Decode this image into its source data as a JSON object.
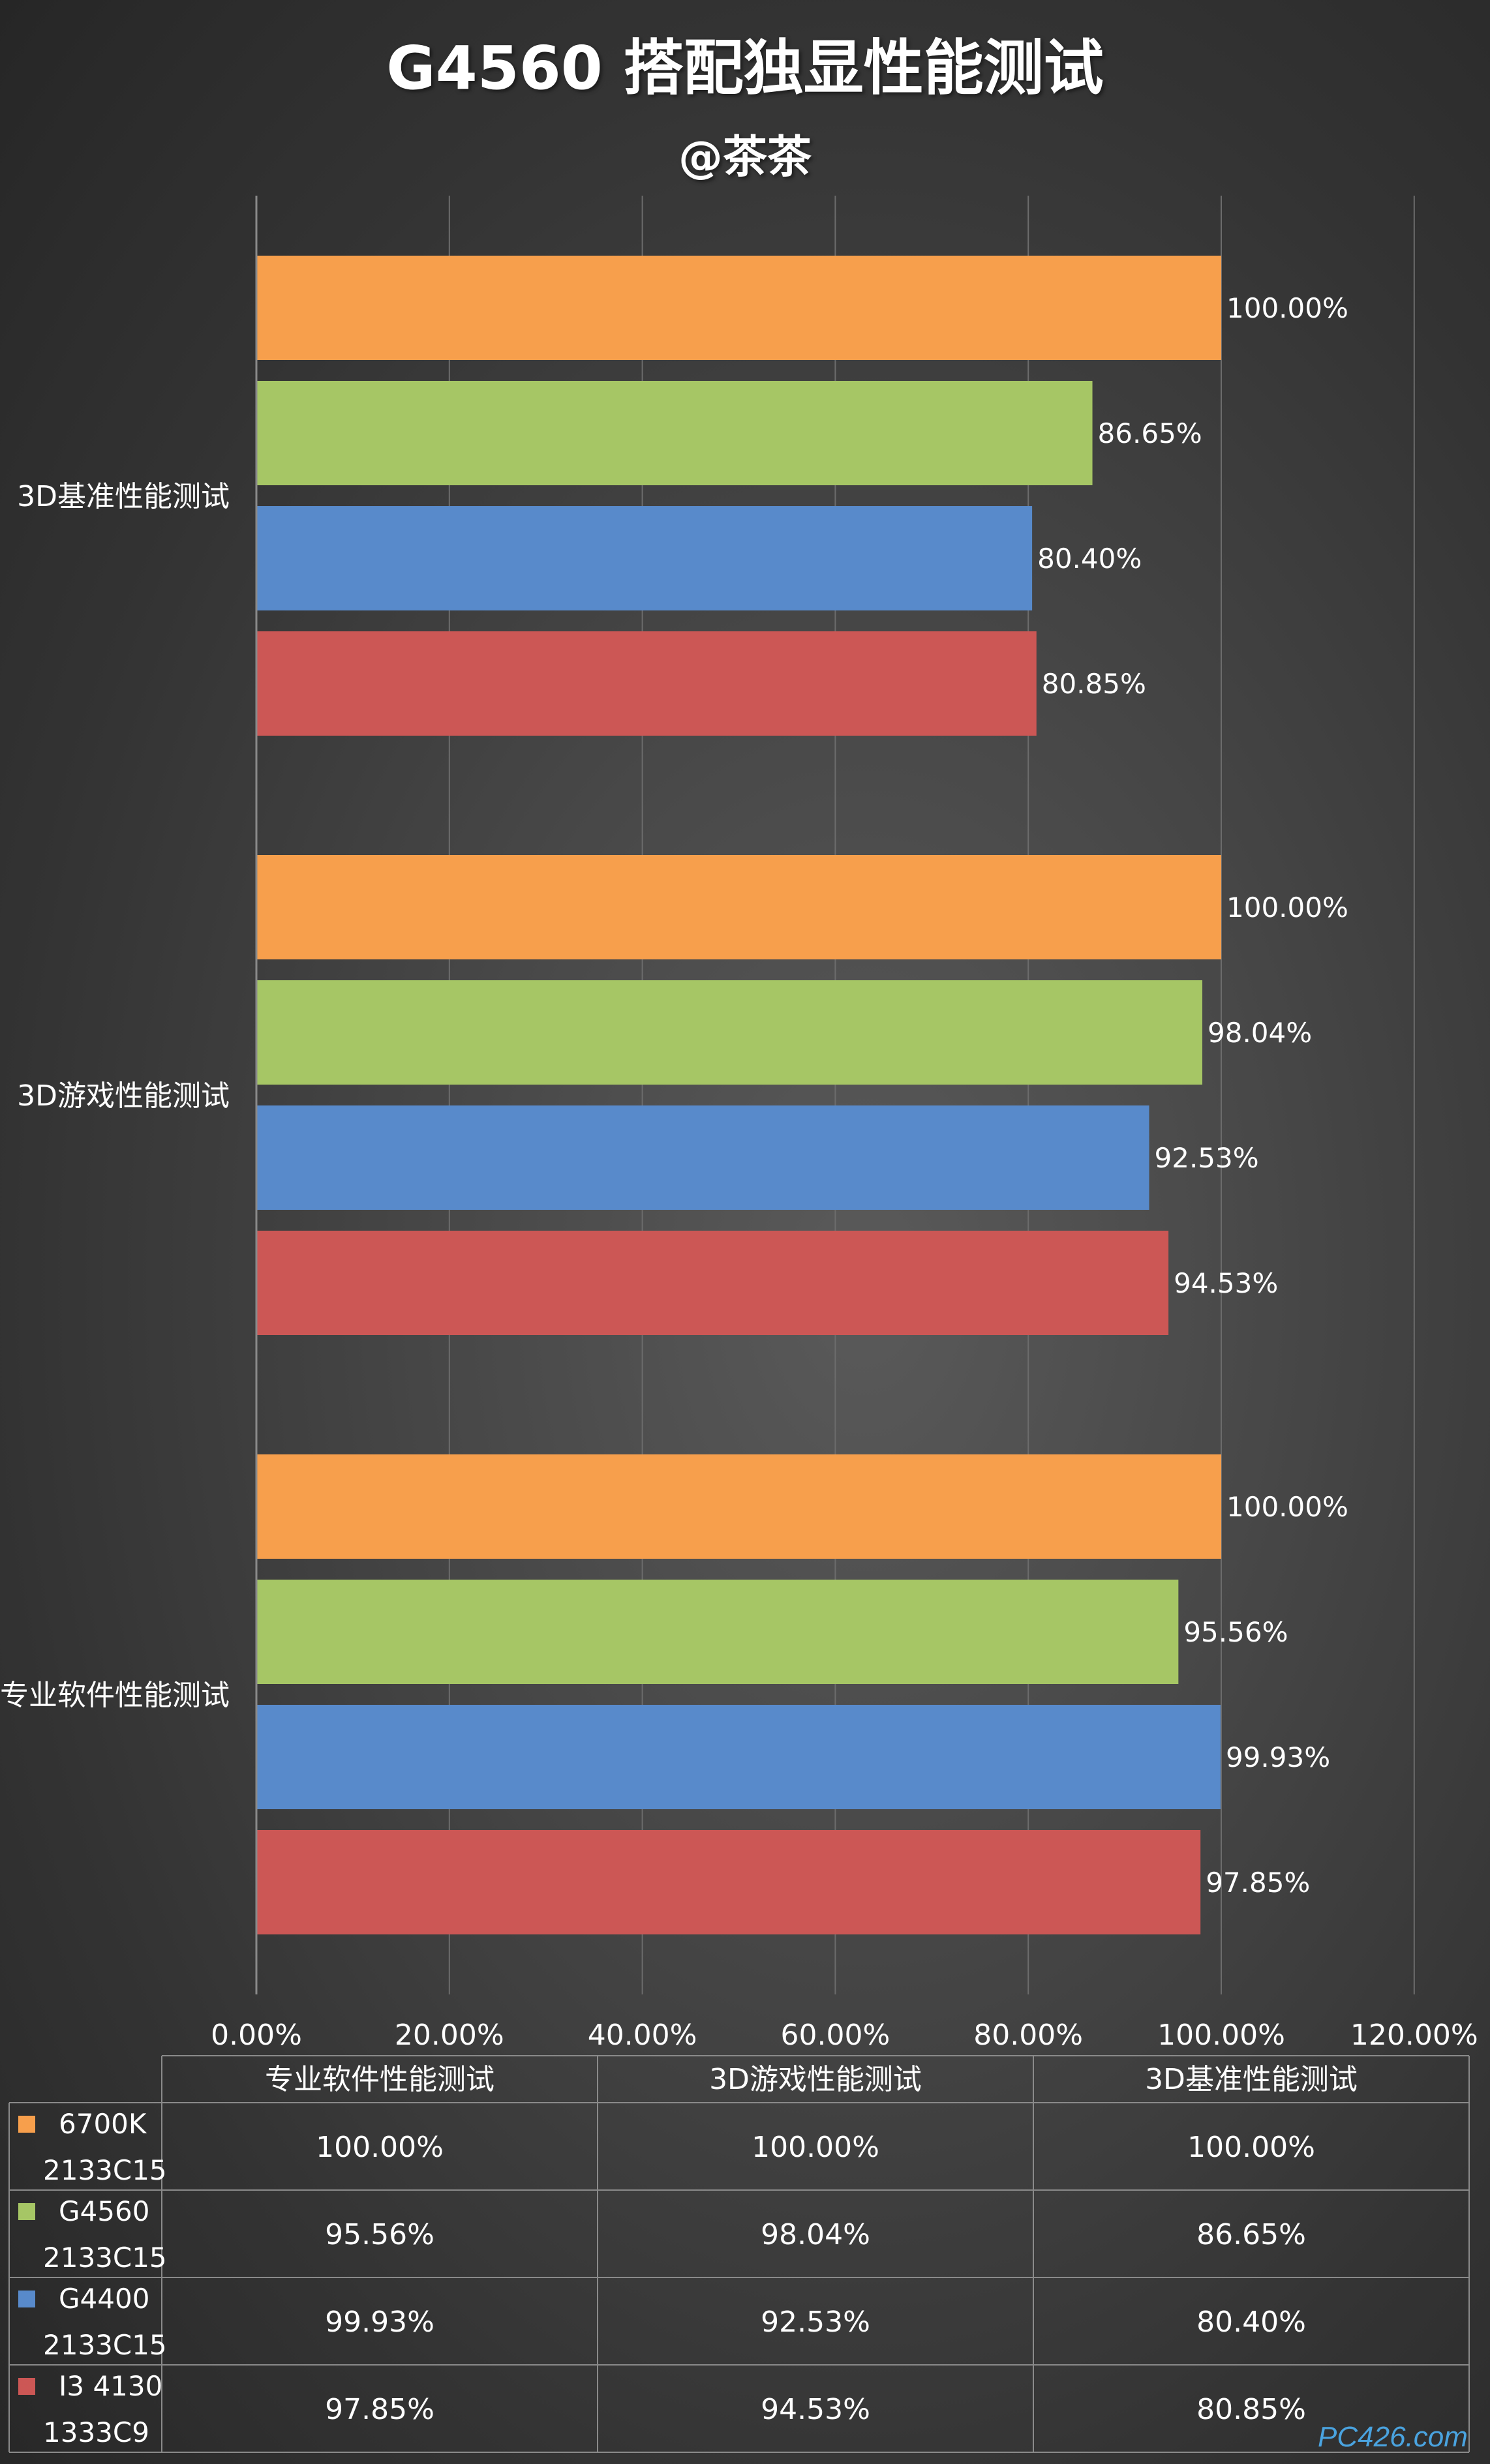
{
  "title": "G4560 搭配独显性能测试",
  "subtitle": "@茶茶",
  "watermark": "PC426.com",
  "chart_data": {
    "type": "bar",
    "orientation": "horizontal",
    "categories": [
      "3D基准性能测试",
      "3D游戏性能测试",
      "专业软件性能测试"
    ],
    "series": [
      {
        "name": "6700K 2133C15",
        "color": "#f79f4c",
        "values": [
          100.0,
          100.0,
          100.0
        ]
      },
      {
        "name": "G4560 2133C15",
        "color": "#a6c665",
        "values": [
          86.65,
          98.04,
          95.56
        ]
      },
      {
        "name": "G4400 2133C15",
        "color": "#588acb",
        "values": [
          80.4,
          92.53,
          99.93
        ]
      },
      {
        "name": "I3 4130 1333C9",
        "color": "#cc5755",
        "values": [
          80.85,
          94.53,
          97.85
        ]
      }
    ],
    "xlim": [
      0,
      120
    ],
    "xticks": [
      "0.00%",
      "20.00%",
      "40.00%",
      "60.00%",
      "80.00%",
      "100.00%",
      "120.00%"
    ],
    "value_format": "percent_2dp",
    "grid": true,
    "legend": "bottom data table",
    "table": {
      "columns": [
        "专业软件性能测试",
        "3D游戏性能测试",
        "3D基准性能测试"
      ],
      "rows": [
        {
          "label": [
            "6700K",
            "2133C15"
          ],
          "color": "#f79f4c",
          "cells": [
            "100.00%",
            "100.00%",
            "100.00%"
          ]
        },
        {
          "label": [
            "G4560",
            "2133C15"
          ],
          "color": "#a6c665",
          "cells": [
            "95.56%",
            "98.04%",
            "86.65%"
          ]
        },
        {
          "label": [
            "G4400",
            "2133C15"
          ],
          "color": "#588acb",
          "cells": [
            "99.93%",
            "92.53%",
            "80.40%"
          ]
        },
        {
          "label": [
            "I3 4130",
            "1333C9"
          ],
          "color": "#cc5755",
          "cells": [
            "97.85%",
            "94.53%",
            "80.85%"
          ]
        }
      ]
    }
  }
}
